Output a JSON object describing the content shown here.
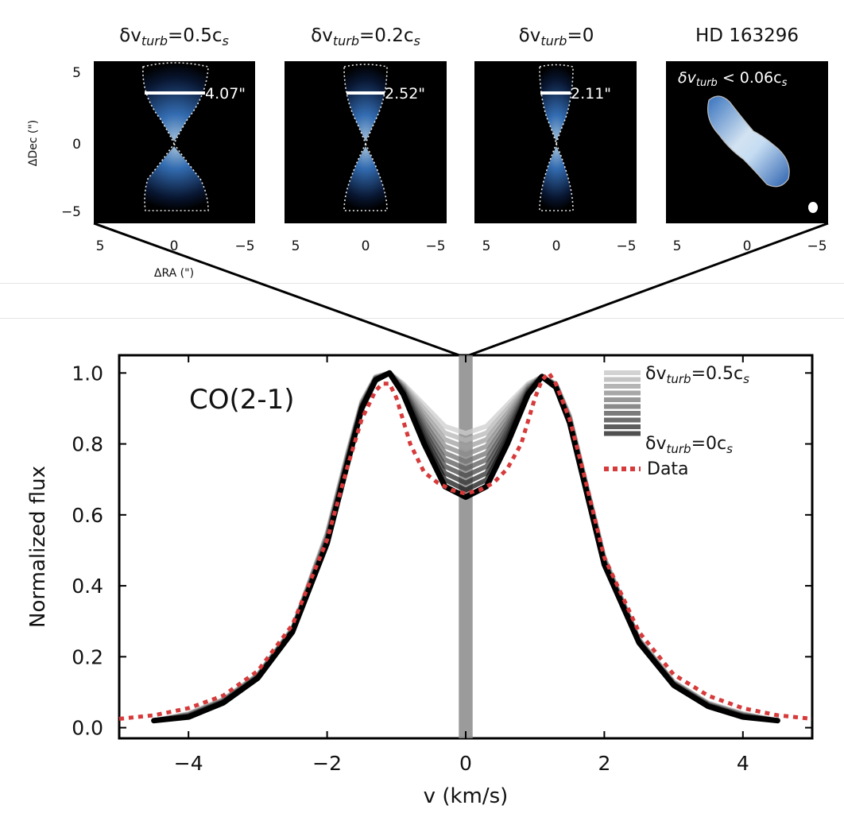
{
  "panels": [
    {
      "title_prefix": "δv",
      "title_sub": "turb",
      "title_suffix": "=0.5c",
      "title_sub2": "s",
      "measure": "4.07\""
    },
    {
      "title_prefix": "δv",
      "title_sub": "turb",
      "title_suffix": "=0.2c",
      "title_sub2": "s",
      "measure": "2.52\""
    },
    {
      "title_prefix": "δv",
      "title_sub": "turb",
      "title_suffix": "=0",
      "title_sub2": "",
      "measure": "2.11\""
    },
    {
      "title_plain": "HD 163296",
      "inset_prefix": "δv",
      "inset_sub": "turb",
      "inset_mid": " < 0.06c",
      "inset_sub2": "s"
    }
  ],
  "panel_axes": {
    "ylabel": "ΔDec (\")",
    "xlabel": "ΔRA (\")",
    "yticks": [
      "5",
      "0",
      "−5"
    ],
    "xticks": [
      "5",
      "0",
      "−5"
    ]
  },
  "chart_data": {
    "type": "line",
    "annotation": "CO(2-1)",
    "xlabel": "v (km/s)",
    "ylabel": "Normalized flux",
    "xlim": [
      -5,
      5
    ],
    "ylim": [
      -0.03,
      1.05
    ],
    "xticks": [
      -4,
      -2,
      0,
      2,
      4
    ],
    "xtick_labels": [
      "−4",
      "−2",
      "0",
      "2",
      "4"
    ],
    "yticks": [
      0.0,
      0.2,
      0.4,
      0.6,
      0.8,
      1.0
    ],
    "ytick_labels": [
      "0.0",
      "0.2",
      "0.4",
      "0.6",
      "0.8",
      "1.0"
    ],
    "highlight_band": [
      -0.1,
      0.1
    ],
    "legend": {
      "top_label_prefix": "δv",
      "top_label_sub": "turb",
      "top_label_suffix": "=0.5c",
      "top_label_sub2": "s",
      "bottom_label_prefix": "δv",
      "bottom_label_sub": "turb",
      "bottom_label_suffix": "=0c",
      "bottom_label_sub2": "s",
      "data_label": "Data"
    },
    "series": [
      {
        "name": "δv_turb=0.5c_s",
        "x": [
          -4.5,
          -4,
          -3.5,
          -3,
          -2.5,
          -2,
          -1.7,
          -1.5,
          -1.3,
          -1.1,
          -0.9,
          -0.6,
          -0.3,
          0,
          0.3,
          0.6,
          0.9,
          1.1,
          1.3,
          1.5,
          1.7,
          2,
          2.5,
          3,
          3.5,
          4,
          4.5
        ],
        "values": [
          0.02,
          0.04,
          0.08,
          0.15,
          0.28,
          0.55,
          0.78,
          0.92,
          0.99,
          1.0,
          0.97,
          0.91,
          0.85,
          0.83,
          0.85,
          0.91,
          0.97,
          0.99,
          0.97,
          0.88,
          0.72,
          0.48,
          0.25,
          0.13,
          0.07,
          0.04,
          0.02
        ]
      },
      {
        "name": "δv_turb=0c_s",
        "x": [
          -4.5,
          -4,
          -3.5,
          -3,
          -2.5,
          -2,
          -1.7,
          -1.5,
          -1.3,
          -1.1,
          -0.9,
          -0.6,
          -0.3,
          0,
          0.3,
          0.6,
          0.9,
          1.1,
          1.3,
          1.5,
          1.7,
          2,
          2.5,
          3,
          3.5,
          4,
          4.5
        ],
        "values": [
          0.02,
          0.03,
          0.07,
          0.14,
          0.27,
          0.52,
          0.75,
          0.9,
          0.98,
          1.0,
          0.94,
          0.8,
          0.68,
          0.65,
          0.68,
          0.8,
          0.94,
          0.99,
          0.96,
          0.86,
          0.7,
          0.46,
          0.24,
          0.12,
          0.06,
          0.03,
          0.02
        ]
      },
      {
        "name": "Data",
        "x": [
          -5,
          -4.5,
          -4,
          -3.5,
          -3,
          -2.5,
          -2,
          -1.7,
          -1.5,
          -1.3,
          -1.2,
          -1.1,
          -1.0,
          -0.8,
          -0.6,
          -0.4,
          -0.2,
          0,
          0.2,
          0.4,
          0.6,
          0.8,
          1.0,
          1.1,
          1.2,
          1.3,
          1.5,
          1.7,
          2,
          2.5,
          3,
          3.5,
          4,
          4.5,
          5
        ],
        "values": [
          0.025,
          0.035,
          0.055,
          0.09,
          0.16,
          0.29,
          0.53,
          0.74,
          0.87,
          0.95,
          0.97,
          0.97,
          0.93,
          0.8,
          0.72,
          0.69,
          0.67,
          0.66,
          0.67,
          0.69,
          0.73,
          0.8,
          0.93,
          0.98,
          1.0,
          0.97,
          0.87,
          0.72,
          0.48,
          0.27,
          0.15,
          0.09,
          0.055,
          0.035,
          0.025
        ]
      }
    ]
  }
}
